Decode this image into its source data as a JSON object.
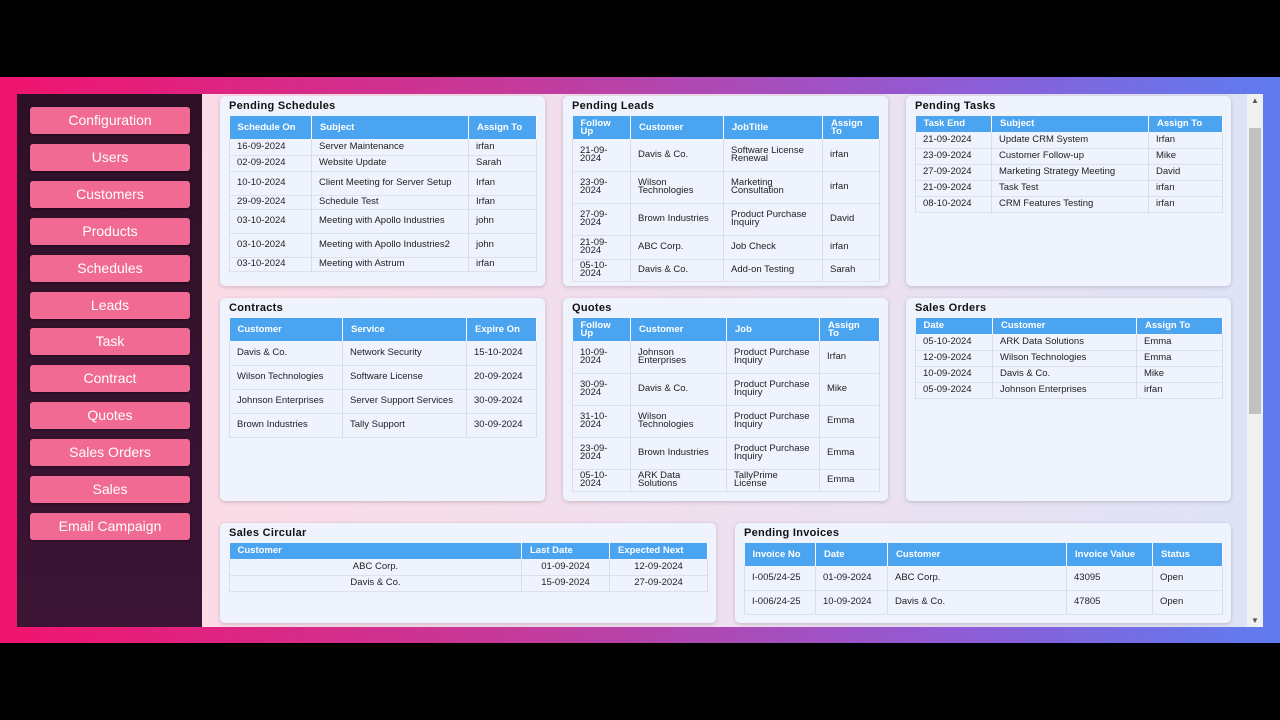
{
  "sidebar": {
    "items": [
      "Configuration",
      "Users",
      "Customers",
      "Products",
      "Schedules",
      "Leads",
      "Task",
      "Contract",
      "Quotes",
      "Sales Orders",
      "Sales",
      "Email Campaign"
    ]
  },
  "pending_schedules": {
    "title": "Pending Schedules",
    "columns": [
      "Schedule On",
      "Subject",
      "Assign To"
    ],
    "rows": [
      [
        "16-09-2024",
        "Server Maintenance",
        "irfan"
      ],
      [
        "02-09-2024",
        "Website Update",
        "Sarah"
      ],
      [
        "10-10-2024",
        "Client Meeting for Server Setup",
        "Irfan"
      ],
      [
        "29-09-2024",
        "Schedule Test",
        "Irfan"
      ],
      [
        "03-10-2024",
        "Meeting with Apollo Industries",
        "john"
      ],
      [
        "03-10-2024",
        "Meeting with Apollo Industries2",
        "john"
      ],
      [
        "03-10-2024",
        "Meeting with Astrum",
        "irfan"
      ]
    ]
  },
  "pending_leads": {
    "title": "Pending Leads",
    "columns": [
      "Follow Up",
      "Customer",
      "JobTitle",
      "Assign To"
    ],
    "rows": [
      [
        "21-09-2024",
        "Davis & Co.",
        "Software License Renewal",
        "irfan"
      ],
      [
        "23-09-2024",
        "Wilson Technologies",
        "Marketing Consultation",
        "irfan"
      ],
      [
        "27-09-2024",
        "Brown Industries",
        "Product Purchase Inquiry",
        "David"
      ],
      [
        "21-09-2024",
        "ABC Corp.",
        "Job Check",
        "irfan"
      ],
      [
        "05-10-2024",
        "Davis & Co.",
        "Add-on Testing",
        "Sarah"
      ]
    ]
  },
  "pending_tasks": {
    "title": "Pending Tasks",
    "columns": [
      "Task End",
      "Subject",
      "Assign To"
    ],
    "rows": [
      [
        "21-09-2024",
        "Update CRM System",
        "Irfan"
      ],
      [
        "23-09-2024",
        "Customer Follow-up",
        "Mike"
      ],
      [
        "27-09-2024",
        "Marketing Strategy Meeting",
        "David"
      ],
      [
        "21-09-2024",
        "Task Test",
        "irfan"
      ],
      [
        "08-10-2024",
        "CRM Features Testing",
        "irfan"
      ]
    ]
  },
  "contracts": {
    "title": "Contracts",
    "columns": [
      "Customer",
      "Service",
      "Expire On"
    ],
    "rows": [
      [
        "Davis & Co.",
        "Network Security",
        "15-10-2024"
      ],
      [
        "Wilson Technologies",
        "Software License",
        "20-09-2024"
      ],
      [
        "Johnson Enterprises",
        "Server Support Services",
        "30-09-2024"
      ],
      [
        "Brown Industries",
        "Tally Support",
        "30-09-2024"
      ]
    ]
  },
  "quotes": {
    "title": "Quotes",
    "columns": [
      "Follow Up",
      "Customer",
      "Job",
      "Assign To"
    ],
    "rows": [
      [
        "10-09-2024",
        "Johnson Enterprises",
        "Product Purchase Inquiry",
        "Irfan"
      ],
      [
        "30-09-2024",
        "Davis & Co.",
        "Product Purchase Inquiry",
        "Mike"
      ],
      [
        "31-10-2024",
        "Wilson Technologies",
        "Product Purchase Inquiry",
        "Emma"
      ],
      [
        "23-09-2024",
        "Brown Industries",
        "Product Purchase Inquiry",
        "Emma"
      ],
      [
        "05-10-2024",
        "ARK Data Solutions",
        "TallyPrime License",
        "Emma"
      ]
    ]
  },
  "sales_orders": {
    "title": "Sales Orders",
    "columns": [
      "Date",
      "Customer",
      "Assign To"
    ],
    "rows": [
      [
        "05-10-2024",
        "ARK Data Solutions",
        "Emma"
      ],
      [
        "12-09-2024",
        "Wilson Technologies",
        "Emma"
      ],
      [
        "10-09-2024",
        "Davis & Co.",
        "Mike"
      ],
      [
        "05-09-2024",
        "Johnson Enterprises",
        "irfan"
      ]
    ]
  },
  "sales_circular": {
    "title": "Sales Circular",
    "columns": [
      "Customer",
      "Last Date",
      "Expected Next"
    ],
    "rows": [
      [
        "ABC Corp.",
        "01-09-2024",
        "12-09-2024"
      ],
      [
        "Davis & Co.",
        "15-09-2024",
        "27-09-2024"
      ]
    ]
  },
  "pending_invoices": {
    "title": "Pending Invoices",
    "columns": [
      "Invoice No",
      "Date",
      "Customer",
      "Invoice Value",
      "Status"
    ],
    "rows": [
      [
        "I-005/24-25",
        "01-09-2024",
        "ABC Corp.",
        "43095",
        "Open"
      ],
      [
        "I-006/24-25",
        "10-09-2024",
        "Davis & Co.",
        "47805",
        "Open"
      ]
    ]
  }
}
